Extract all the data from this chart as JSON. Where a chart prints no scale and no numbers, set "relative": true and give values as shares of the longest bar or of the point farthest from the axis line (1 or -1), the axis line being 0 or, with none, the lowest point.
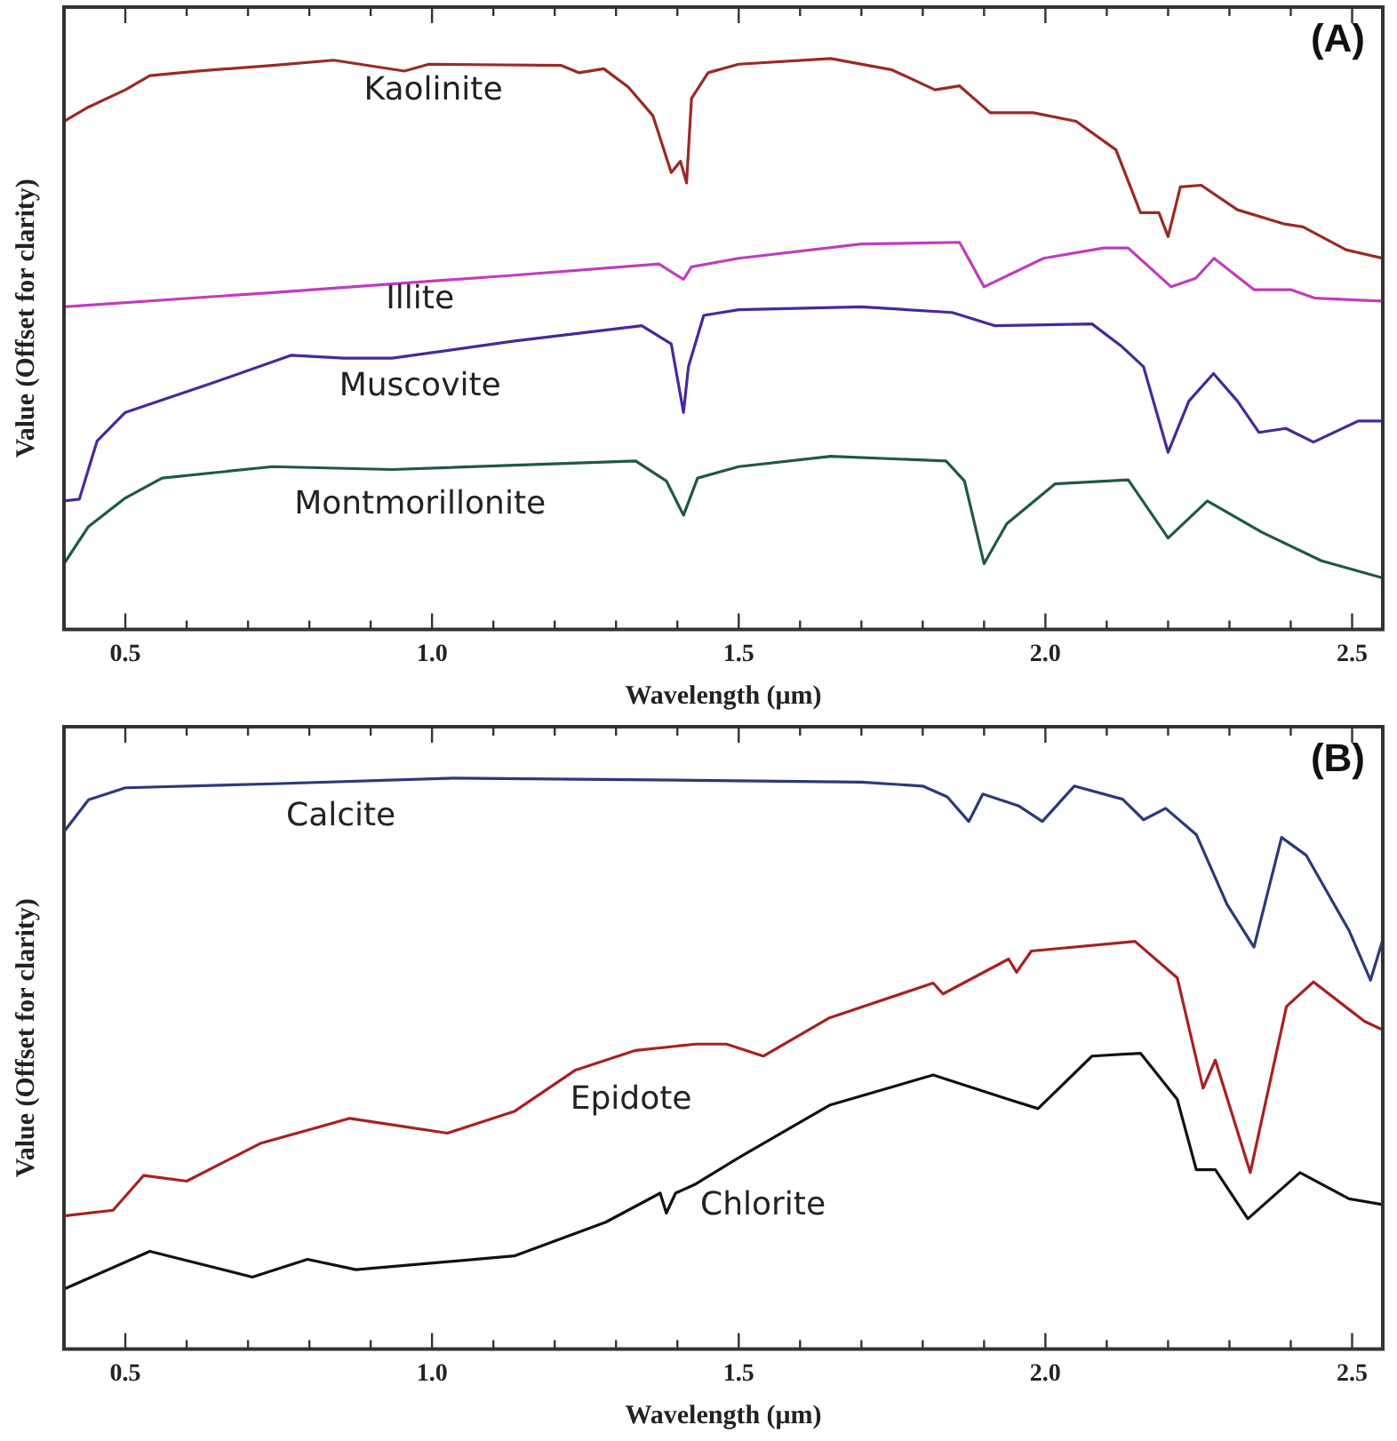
{
  "chart_data": [
    {
      "type": "line",
      "title": "(A)",
      "xlabel": "Wavelength (μm)",
      "ylabel": "Value (Offset for clarity)",
      "relative": true,
      "grid": false,
      "legend": false,
      "marker": "none",
      "line_style": "solid",
      "xlim": [
        0.4,
        2.55
      ],
      "xticks": [
        {
          "value": 0.4,
          "label": null
        },
        {
          "value": 0.5,
          "label": "0.5"
        },
        {
          "value": 0.6,
          "label": null
        },
        {
          "value": 0.7,
          "label": null
        },
        {
          "value": 0.8,
          "label": null
        },
        {
          "value": 0.9,
          "label": null
        },
        {
          "value": 1.0,
          "label": "1.0"
        },
        {
          "value": 1.1,
          "label": null
        },
        {
          "value": 1.2,
          "label": null
        },
        {
          "value": 1.3,
          "label": null
        },
        {
          "value": 1.4,
          "label": null
        },
        {
          "value": 1.5,
          "label": "1.5"
        },
        {
          "value": 1.6,
          "label": null
        },
        {
          "value": 1.7,
          "label": null
        },
        {
          "value": 1.8,
          "label": null
        },
        {
          "value": 1.9,
          "label": null
        },
        {
          "value": 2.0,
          "label": "2.0"
        },
        {
          "value": 2.1,
          "label": null
        },
        {
          "value": 2.2,
          "label": null
        },
        {
          "value": 2.3,
          "label": null
        },
        {
          "value": 2.4,
          "label": null
        },
        {
          "value": 2.5,
          "label": "2.5"
        }
      ],
      "series": [
        {
          "name": "Kaolinite",
          "color": "#9a2a24",
          "x": [
            0.4,
            0.44,
            0.5,
            0.54,
            0.62,
            0.74,
            0.84,
            0.955,
            0.995,
            1.21,
            1.24,
            1.28,
            1.32,
            1.36,
            1.39,
            1.405,
            1.415,
            1.423,
            1.45,
            1.5,
            1.65,
            1.75,
            1.82,
            1.86,
            1.91,
            1.98,
            2.05,
            2.115,
            2.155,
            2.185,
            2.2,
            2.22,
            2.254,
            2.313,
            2.39,
            2.42,
            2.49,
            2.55
          ],
          "values": [
            0.89,
            0.915,
            0.945,
            0.97,
            0.978,
            0.988,
            0.997,
            0.978,
            0.99,
            0.988,
            0.975,
            0.982,
            0.95,
            0.9,
            0.8,
            0.82,
            0.782,
            0.93,
            0.975,
            0.99,
            1.0,
            0.98,
            0.945,
            0.952,
            0.905,
            0.905,
            0.89,
            0.84,
            0.73,
            0.73,
            0.688,
            0.775,
            0.778,
            0.735,
            0.71,
            0.705,
            0.665,
            0.65
          ]
        },
        {
          "name": "Illite",
          "color": "#c03cc0",
          "x": [
            0.4,
            0.74,
            1.13,
            1.37,
            1.41,
            1.423,
            1.5,
            1.7,
            1.86,
            1.9,
            1.997,
            2.095,
            2.135,
            2.205,
            2.245,
            2.275,
            2.34,
            2.4,
            2.44,
            2.55
          ],
          "values": [
            0.565,
            0.59,
            0.62,
            0.64,
            0.613,
            0.635,
            0.65,
            0.675,
            0.678,
            0.6,
            0.65,
            0.668,
            0.668,
            0.6,
            0.615,
            0.65,
            0.595,
            0.595,
            0.58,
            0.575
          ]
        },
        {
          "name": "Muscovite",
          "color": "#48289a",
          "x": [
            0.4,
            0.425,
            0.454,
            0.5,
            0.638,
            0.77,
            0.856,
            0.935,
            1.134,
            1.342,
            1.39,
            1.41,
            1.418,
            1.443,
            1.5,
            1.7,
            1.848,
            1.917,
            2.076,
            2.125,
            2.16,
            2.2,
            2.234,
            2.274,
            2.313,
            2.348,
            2.392,
            2.437,
            2.51,
            2.55
          ],
          "values": [
            0.225,
            0.228,
            0.33,
            0.38,
            0.43,
            0.48,
            0.475,
            0.475,
            0.505,
            0.532,
            0.5,
            0.38,
            0.46,
            0.55,
            0.56,
            0.565,
            0.555,
            0.532,
            0.535,
            0.495,
            0.46,
            0.31,
            0.4,
            0.448,
            0.4,
            0.345,
            0.352,
            0.328,
            0.365,
            0.365
          ]
        },
        {
          "name": "Montmorillonite",
          "color": "#1f5a40",
          "x": [
            0.4,
            0.44,
            0.5,
            0.56,
            0.74,
            0.935,
            1.332,
            1.382,
            1.41,
            1.433,
            1.5,
            1.65,
            1.838,
            1.868,
            1.9,
            1.937,
            2.016,
            2.135,
            2.2,
            2.264,
            2.353,
            2.45,
            2.55
          ],
          "values": [
            0.115,
            0.18,
            0.23,
            0.265,
            0.285,
            0.28,
            0.295,
            0.26,
            0.2,
            0.265,
            0.285,
            0.303,
            0.295,
            0.26,
            0.115,
            0.185,
            0.255,
            0.262,
            0.16,
            0.225,
            0.17,
            0.12,
            0.09
          ]
        }
      ]
    },
    {
      "type": "line",
      "title": "(B)",
      "xlabel": "Wavelength (μm)",
      "ylabel": "Value (Offset for clarity)",
      "relative": true,
      "grid": false,
      "legend": false,
      "marker": "none",
      "line_style": "solid",
      "xlim": [
        0.4,
        2.55
      ],
      "xticks": [
        {
          "value": 0.4,
          "label": null
        },
        {
          "value": 0.5,
          "label": "0.5"
        },
        {
          "value": 0.6,
          "label": null
        },
        {
          "value": 0.7,
          "label": null
        },
        {
          "value": 0.8,
          "label": null
        },
        {
          "value": 0.9,
          "label": null
        },
        {
          "value": 1.0,
          "label": "1.0"
        },
        {
          "value": 1.1,
          "label": null
        },
        {
          "value": 1.2,
          "label": null
        },
        {
          "value": 1.3,
          "label": null
        },
        {
          "value": 1.4,
          "label": null
        },
        {
          "value": 1.5,
          "label": "1.5"
        },
        {
          "value": 1.6,
          "label": null
        },
        {
          "value": 1.7,
          "label": null
        },
        {
          "value": 1.8,
          "label": null
        },
        {
          "value": 1.9,
          "label": null
        },
        {
          "value": 2.0,
          "label": "2.0"
        },
        {
          "value": 2.1,
          "label": null
        },
        {
          "value": 2.2,
          "label": null
        },
        {
          "value": 2.3,
          "label": null
        },
        {
          "value": 2.4,
          "label": null
        },
        {
          "value": 2.5,
          "label": "2.5"
        }
      ],
      "series": [
        {
          "name": "Calcite",
          "color": "#2a3a7a",
          "x": [
            0.4,
            0.44,
            0.5,
            0.74,
            1.035,
            1.43,
            1.7,
            1.8,
            1.84,
            1.875,
            1.898,
            1.957,
            1.995,
            2.047,
            2.126,
            2.16,
            2.196,
            2.246,
            2.296,
            2.34,
            2.385,
            2.425,
            2.495,
            2.53,
            2.55
          ],
          "values": [
            0.906,
            0.962,
            0.983,
            0.99,
            1.0,
            0.996,
            0.993,
            0.986,
            0.967,
            0.924,
            0.972,
            0.951,
            0.924,
            0.986,
            0.963,
            0.927,
            0.947,
            0.901,
            0.779,
            0.704,
            0.896,
            0.865,
            0.733,
            0.646,
            0.717
          ]
        },
        {
          "name": "Epidote",
          "color": "#a82020",
          "x": [
            0.4,
            0.48,
            0.53,
            0.6,
            0.72,
            0.866,
            1.025,
            1.134,
            1.233,
            1.332,
            1.43,
            1.48,
            1.54,
            1.648,
            1.817,
            1.833,
            1.94,
            1.953,
            1.977,
            2.146,
            2.215,
            2.257,
            2.277,
            2.334,
            2.393,
            2.437,
            2.52,
            2.55
          ],
          "values": [
            0.233,
            0.243,
            0.304,
            0.294,
            0.36,
            0.404,
            0.378,
            0.416,
            0.488,
            0.523,
            0.534,
            0.534,
            0.513,
            0.58,
            0.641,
            0.622,
            0.683,
            0.66,
            0.697,
            0.714,
            0.65,
            0.457,
            0.506,
            0.309,
            0.6,
            0.643,
            0.574,
            0.559
          ]
        },
        {
          "name": "Chlorite",
          "color": "#111111",
          "x": [
            0.4,
            0.54,
            0.707,
            0.797,
            0.876,
            1.134,
            1.283,
            1.372,
            1.382,
            1.397,
            1.43,
            1.5,
            1.648,
            1.817,
            1.94,
            1.988,
            2.076,
            2.155,
            2.215,
            2.246,
            2.277,
            2.33,
            2.415,
            2.495,
            2.55
          ],
          "values": [
            0.105,
            0.171,
            0.126,
            0.157,
            0.139,
            0.163,
            0.222,
            0.273,
            0.238,
            0.273,
            0.289,
            0.335,
            0.427,
            0.48,
            0.437,
            0.421,
            0.513,
            0.518,
            0.437,
            0.314,
            0.314,
            0.228,
            0.309,
            0.263,
            0.253
          ]
        }
      ]
    }
  ]
}
